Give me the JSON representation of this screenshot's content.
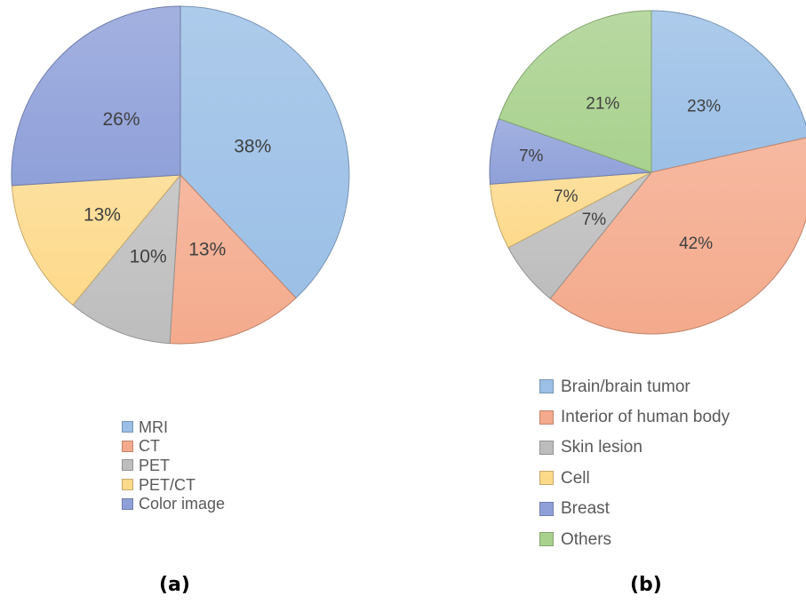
{
  "chart_data": [
    {
      "type": "pie",
      "caption": "(a)",
      "categories": [
        "MRI",
        "CT",
        "PET",
        "PET/CT",
        "Color image"
      ],
      "values": [
        38,
        13,
        10,
        13,
        26
      ],
      "labels": [
        "38%",
        "13%",
        "10%",
        "13%",
        "26%"
      ],
      "colors": [
        "#9bbfe6",
        "#f4aa8c",
        "#bdbdbd",
        "#fdd98a",
        "#8fa0d9"
      ],
      "start_angle_deg": 0,
      "direction": "clockwise",
      "legend_position": "bottom"
    },
    {
      "type": "pie",
      "caption": "(b)",
      "categories": [
        "Brain/brain tumor",
        "Interior of human body",
        "Skin lesion",
        "Cell",
        "Breast",
        "Others"
      ],
      "values": [
        23,
        42,
        7,
        7,
        7,
        21
      ],
      "labels": [
        "23%",
        "42%",
        "7%",
        "7%",
        "7%",
        "21%"
      ],
      "colors": [
        "#9bbfe6",
        "#f4aa8c",
        "#bdbdbd",
        "#fdd98a",
        "#8fa0d9",
        "#a9d18e"
      ],
      "start_angle_deg": 0,
      "direction": "clockwise",
      "legend_position": "bottom"
    }
  ]
}
